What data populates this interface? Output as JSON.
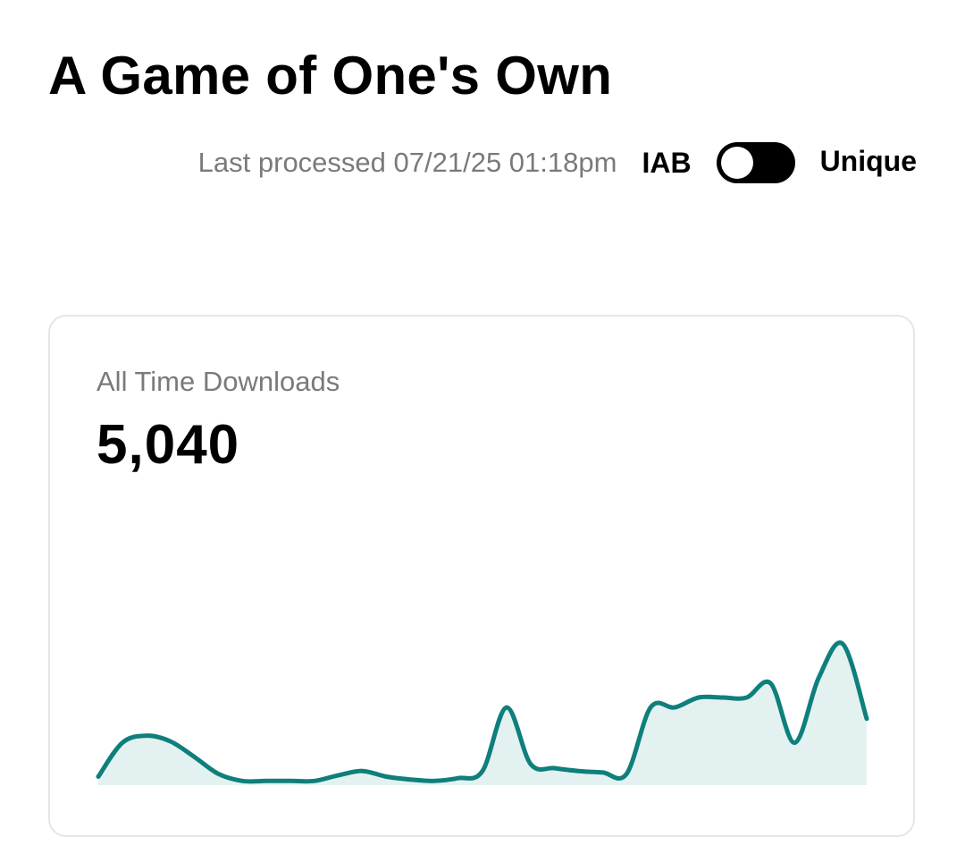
{
  "header": {
    "title": "A Game of One's Own",
    "last_processed": "Last processed 07/21/25 01:18pm",
    "toggle": {
      "left_label": "IAB",
      "right_label": "Unique",
      "state": "IAB",
      "track_color": "#000000",
      "knob_color": "#ffffff"
    }
  },
  "stats_card": {
    "label": "All Time Downloads",
    "value": "5,040"
  },
  "chart_data": {
    "type": "area",
    "title": "",
    "xlabel": "",
    "ylabel": "",
    "grid": false,
    "ylim": [
      0,
      100
    ],
    "line_color": "#0f7f7c",
    "fill_color": "#e3f2f1",
    "values": [
      6,
      30,
      35,
      31,
      20,
      8,
      3,
      3,
      3,
      3,
      7,
      10,
      6,
      4,
      3,
      5,
      10,
      55,
      15,
      12,
      10,
      9,
      8,
      55,
      55,
      62,
      62,
      62,
      72,
      30,
      76,
      100,
      47
    ]
  }
}
